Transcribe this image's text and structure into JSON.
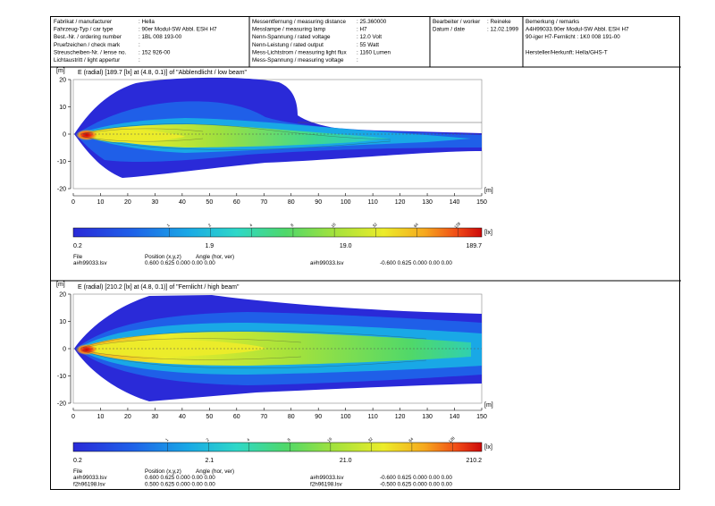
{
  "header": {
    "col1": [
      [
        "Fabrikat / manufacturer",
        ": Hella"
      ],
      [
        "Fahrzeug-Typ / car type",
        ": 90er Modul-SW Abbl. ESH H7"
      ],
      [
        "Best.-Nr. / ordering number",
        ": 1BL 008 193-00"
      ],
      [
        "Pruefzeichen / check mark",
        ":"
      ],
      [
        "Streuscheiben-Nr. / lense no.",
        ": 152 926-00"
      ],
      [
        "Lichtaustritt / light appertur",
        ":"
      ]
    ],
    "col2": [
      [
        "Messentfernung / measuring distance",
        ": 25.360000"
      ],
      [
        "Messlampe / measuring lamp",
        ": H7"
      ],
      [
        "Nenn-Spannung / rated voltage",
        ": 12.0 Volt"
      ],
      [
        "Nenn-Leistung / rated output",
        ": 55 Watt"
      ],
      [
        "Mess-Lichtstrom / measuring light flux",
        ": 1160 Lumen"
      ],
      [
        "Mess-Spannung / measuring voltage",
        ":"
      ]
    ],
    "col3": [
      [
        "Bearbeiter / worker",
        ": Reineke"
      ],
      [
        "Datum / date",
        ": 12.02.1999"
      ]
    ],
    "col4": [
      "Bemerkung / remarks",
      "A4H99033.90er Modul-SW Abbl. ESH H7",
      "90-iger H7-Fernlicht : 1K0 008 191-00",
      "",
      "Hersteller/Herkunft: Hella/GHS-T"
    ]
  },
  "chart_data": [
    {
      "type": "heatmap",
      "title": "E (radial) [189.7 [lx] at (4.8, 0.1)] of \"Abblendlicht / low beam\"",
      "x_unit": "[m]",
      "y_unit": "[m]",
      "xlim": [
        0,
        150
      ],
      "ylim": [
        -20,
        20
      ],
      "x_ticks": [
        0,
        10,
        20,
        30,
        40,
        50,
        60,
        70,
        80,
        90,
        100,
        110,
        120,
        130,
        140,
        150
      ],
      "y_ticks": [
        20,
        10,
        0,
        -10,
        -20
      ],
      "peak": {
        "value": 189.7,
        "x": 4.8,
        "y": 0.1
      },
      "colorbar": {
        "unit": "[lx]",
        "min": 0.2,
        "max": 189.7,
        "labels": [
          "0.2",
          "1.9",
          "19.0",
          "189.7"
        ],
        "contour_levels": [
          "1",
          "2",
          "4",
          "8",
          "16",
          "32",
          "64",
          "128"
        ]
      },
      "files": {
        "headers": [
          "File",
          "Position (x,y,z)",
          "Angle (hor, ver)"
        ],
        "rows": [
          [
            "a#h99033.lsv",
            "0.600  0.625  0.000  0.00  0.00"
          ],
          [
            "a#h99033.lsv",
            "-0.600  0.625  0.000  0.00  0.00"
          ]
        ]
      }
    },
    {
      "type": "heatmap",
      "title": "E (radial) [210.2 [lx] at (4.8, 0.1)] of \"Fernlicht / high beam\"",
      "x_unit": "[m]",
      "y_unit": "[m]",
      "xlim": [
        0,
        150
      ],
      "ylim": [
        -20,
        20
      ],
      "x_ticks": [
        0,
        10,
        20,
        30,
        40,
        50,
        60,
        70,
        80,
        90,
        100,
        110,
        120,
        130,
        140,
        150
      ],
      "y_ticks": [
        20,
        10,
        0,
        -10,
        -20
      ],
      "peak": {
        "value": 210.2,
        "x": 4.8,
        "y": 0.1
      },
      "colorbar": {
        "unit": "[lx]",
        "min": 0.2,
        "max": 210.2,
        "labels": [
          "0.2",
          "2.1",
          "21.0",
          "210.2"
        ],
        "contour_levels": [
          "1",
          "2",
          "4",
          "8",
          "16",
          "32",
          "64",
          "128"
        ]
      },
      "files": {
        "headers": [
          "File",
          "Position (x,y,z)",
          "Angle (hor, ver)"
        ],
        "rows": [
          [
            "a#h99033.lsv",
            "0.600  0.625  0.000  0.00  0.00"
          ],
          [
            "f2h96198.lsv",
            "0.500  0.625  0.000  0.00  0.00"
          ],
          [
            "a#h99033.lsv",
            "-0.600  0.625  0.000  0.00  0.00"
          ],
          [
            "f2h96198.lsv",
            "-0.500  0.625  0.000  0.00  0.00"
          ]
        ]
      }
    }
  ]
}
